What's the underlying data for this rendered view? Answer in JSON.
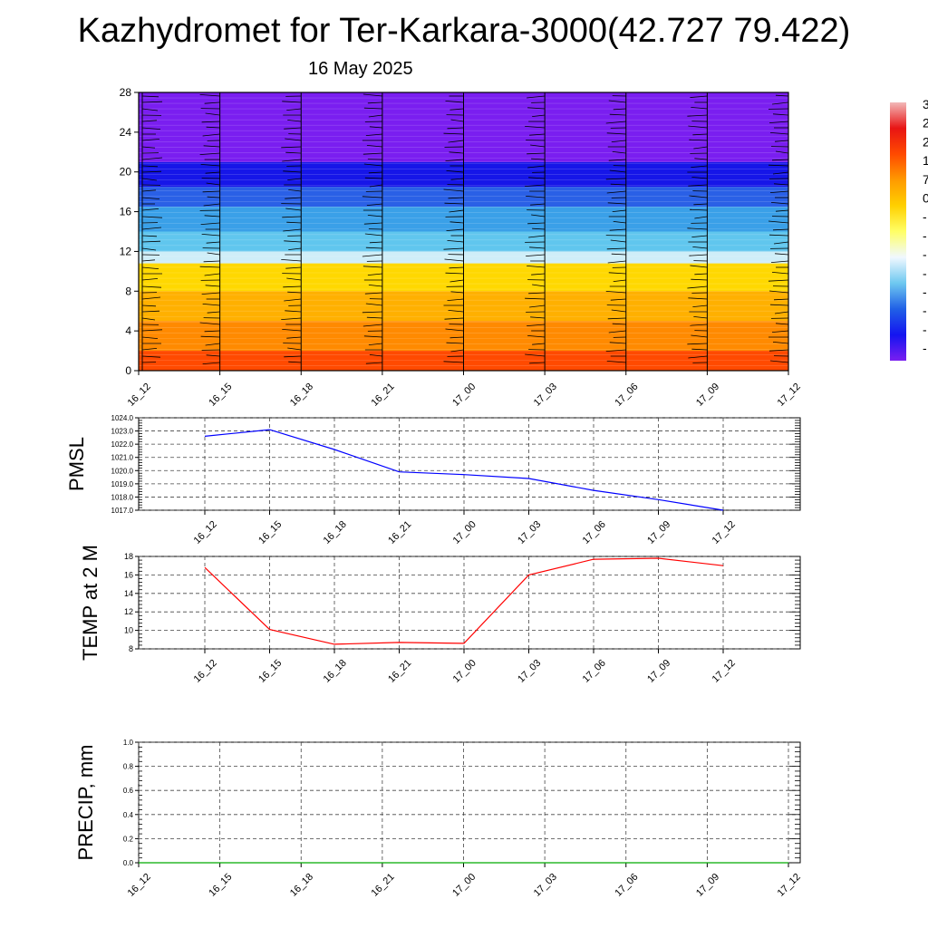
{
  "title": "Kazhydromet for Ter-Karkara-3000(42.727 79.422)",
  "subtitle": "16 May 2025",
  "colors": {
    "pmsl_line": "#0000ff",
    "temp_line": "#ff0000",
    "precip_line": "#00aa00",
    "grid": "#444444",
    "axis": "#000000"
  },
  "colorbar": {
    "labels": [
      "3",
      "2",
      "2",
      "1",
      "7",
      "0",
      "-",
      "-",
      "-",
      "-",
      "-",
      "-",
      "-",
      "-"
    ],
    "gradient": [
      "#f2b8b8",
      "#e81414",
      "#ff4a00",
      "#ff9a00",
      "#ffd000",
      "#ffff66",
      "#f0f8ff",
      "#6ec8f0",
      "#2060e6",
      "#1414f0",
      "#7a1ef0"
    ]
  },
  "chart_data": [
    {
      "type": "heatmap",
      "name": "wind-temperature-cross-section",
      "ylim": [
        0,
        28
      ],
      "yticks": [
        0,
        4,
        8,
        12,
        16,
        20,
        24,
        28
      ],
      "categories": [
        "16_12",
        "16_15",
        "16_18",
        "16_21",
        "17_00",
        "17_03",
        "17_06",
        "17_09",
        "17_12"
      ],
      "color_bands": [
        {
          "y0": 0,
          "y1": 2,
          "color": "#ff4a00"
        },
        {
          "y0": 2,
          "y1": 5,
          "color": "#ff8a00"
        },
        {
          "y0": 5,
          "y1": 8,
          "color": "#ffb000"
        },
        {
          "y0": 8,
          "y1": 10.8,
          "color": "#ffd800"
        },
        {
          "y0": 10.8,
          "y1": 12,
          "color": "#cfeef8"
        },
        {
          "y0": 12,
          "y1": 14,
          "color": "#60c6ee"
        },
        {
          "y0": 14,
          "y1": 16.5,
          "color": "#3aa0e8"
        },
        {
          "y0": 16.5,
          "y1": 18.5,
          "color": "#2a60e6"
        },
        {
          "y0": 18.5,
          "y1": 21,
          "color": "#1616e8"
        },
        {
          "y0": 21,
          "y1": 28,
          "color": "#7a1ef0"
        }
      ]
    },
    {
      "type": "line",
      "ylabel": "PMSL",
      "categories": [
        "16_12",
        "16_15",
        "16_18",
        "16_21",
        "17_00",
        "17_03",
        "17_06",
        "17_09",
        "17_12"
      ],
      "series": [
        {
          "values": [
            1022.6,
            1023.1,
            1021.6,
            1019.9,
            1019.7,
            1019.4,
            1018.5,
            1017.8,
            1017.0
          ]
        }
      ],
      "ylim": [
        1017.0,
        1024.0
      ],
      "yticks": [
        "1017.0",
        "1018.0",
        "1019.0",
        "1020.0",
        "1021.0",
        "1022.0",
        "1023.0",
        "1024.0"
      ],
      "grid": true
    },
    {
      "type": "line",
      "ylabel": "TEMP at 2 M",
      "categories": [
        "16_12",
        "16_15",
        "16_18",
        "16_21",
        "17_00",
        "17_03",
        "17_06",
        "17_09",
        "17_12"
      ],
      "series": [
        {
          "values": [
            16.8,
            10.1,
            8.5,
            8.7,
            8.6,
            16.0,
            17.7,
            17.8,
            17.0
          ]
        }
      ],
      "ylim": [
        8,
        18
      ],
      "yticks": [
        "8",
        "10",
        "12",
        "14",
        "16",
        "18"
      ],
      "grid": true
    },
    {
      "type": "line",
      "ylabel": "PRECIP, mm",
      "categories": [
        "16_12",
        "16_15",
        "16_18",
        "16_21",
        "17_00",
        "17_03",
        "17_06",
        "17_09",
        "17_12"
      ],
      "series": [
        {
          "values": [
            0,
            0,
            0,
            0,
            0,
            0,
            0,
            0,
            0
          ]
        }
      ],
      "ylim": [
        0,
        1.0
      ],
      "yticks": [
        "0.0",
        "0.2",
        "0.4",
        "0.6",
        "0.8",
        "1.0"
      ],
      "grid": true
    }
  ]
}
